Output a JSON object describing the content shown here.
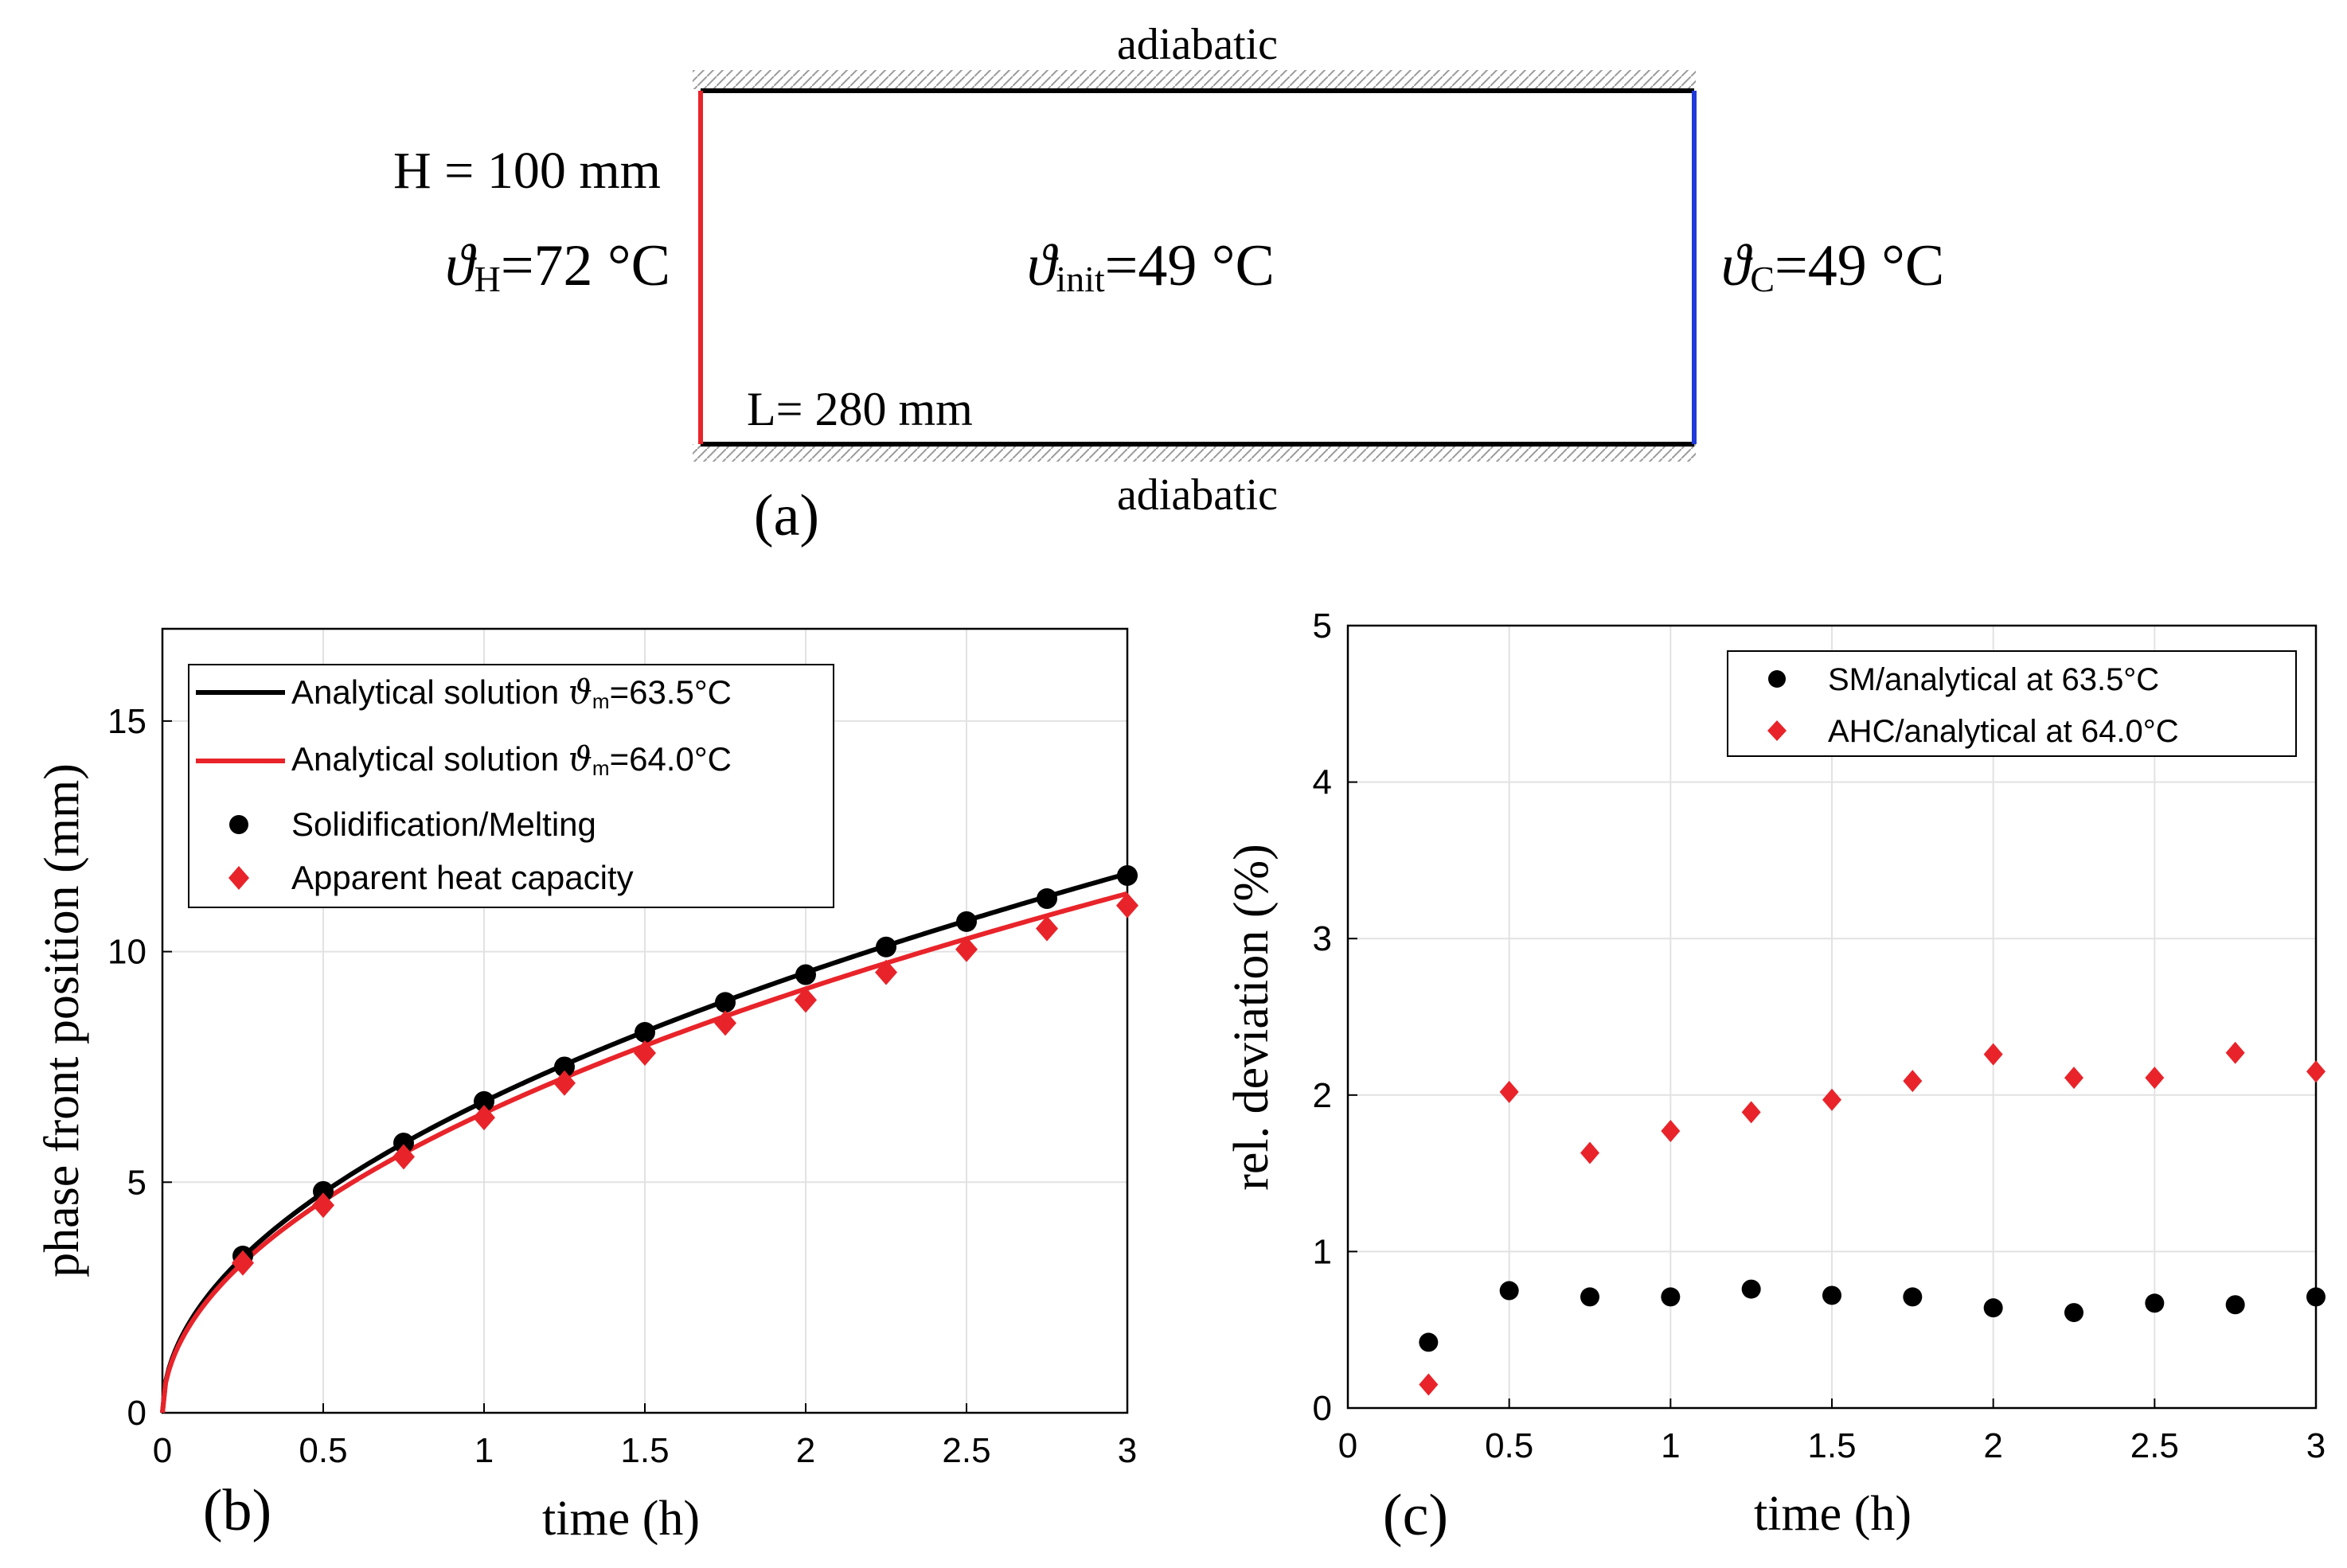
{
  "schematic": {
    "top_label": "adiabatic",
    "bottom_label": "adiabatic",
    "height_label": "H = 100 mm",
    "hot_symbol": "ϑ",
    "hot_sub": "H",
    "hot_value": "=72 °C",
    "init_symbol": "ϑ",
    "init_sub": "init",
    "init_value": "=49 °C",
    "cold_symbol": "ϑ",
    "cold_sub": "C",
    "cold_value": "=49 °C",
    "length_label": "L= 280 mm",
    "panel_label": "(a)",
    "colors": {
      "hot": "#e8242a",
      "cold": "#1f3ad8",
      "outline": "#000000"
    }
  },
  "chart_data": [
    {
      "type": "line",
      "panel_label": "(b)",
      "xlabel": "time (h)",
      "ylabel": "phase front position (mm)",
      "xlim": [
        0,
        3
      ],
      "ylim": [
        0,
        17
      ],
      "xticks": [
        0,
        0.5,
        1,
        1.5,
        2,
        2.5,
        3
      ],
      "xtick_labels": [
        "0",
        "0.5",
        "1",
        "1.5",
        "2",
        "2.5",
        "3"
      ],
      "yticks": [
        0,
        5,
        10,
        15
      ],
      "ytick_labels": [
        "0",
        "5",
        "10",
        "15"
      ],
      "grid": true,
      "legend_position": "top-left",
      "lines": [
        {
          "name": "Analytical solution",
          "legend_prefix": "Analytical solution ",
          "legend_symbol": "ϑ",
          "legend_sub": "m",
          "legend_suffix": "=63.5°C",
          "color": "#000000",
          "coef_mm_per_sqrt_h": 6.75
        },
        {
          "name": "Analytical solution",
          "legend_prefix": "Analytical solution ",
          "legend_symbol": "ϑ",
          "legend_sub": "m",
          "legend_suffix": "=64.0°C",
          "color": "#e8242a",
          "coef_mm_per_sqrt_h": 6.5
        }
      ],
      "series": [
        {
          "name": "Solidification/Melting",
          "marker": "circle",
          "color": "#000000",
          "x": [
            0.25,
            0.5,
            0.75,
            1,
            1.25,
            1.5,
            1.75,
            2,
            2.25,
            2.5,
            2.75,
            3
          ],
          "values": [
            3.4,
            4.8,
            5.85,
            6.75,
            7.5,
            8.25,
            8.9,
            9.5,
            10.1,
            10.65,
            11.15,
            11.65
          ]
        },
        {
          "name": "Apparent heat capacity",
          "marker": "diamond",
          "color": "#e8242a",
          "x": [
            0.25,
            0.5,
            0.75,
            1,
            1.25,
            1.5,
            1.75,
            2,
            2.25,
            2.5,
            2.75,
            3
          ],
          "values": [
            3.25,
            4.5,
            5.55,
            6.4,
            7.15,
            7.8,
            8.45,
            8.95,
            9.55,
            10.05,
            10.5,
            11.0
          ]
        }
      ]
    },
    {
      "type": "scatter",
      "panel_label": "(c)",
      "xlabel": "time (h)",
      "ylabel": "rel. deviation (%)",
      "xlim": [
        0,
        3
      ],
      "ylim": [
        0,
        5
      ],
      "xticks": [
        0,
        0.5,
        1,
        1.5,
        2,
        2.5,
        3
      ],
      "xtick_labels": [
        "0",
        "0.5",
        "1",
        "1.5",
        "2",
        "2.5",
        "3"
      ],
      "yticks": [
        0,
        1,
        2,
        3,
        4,
        5
      ],
      "ytick_labels": [
        "0",
        "1",
        "2",
        "3",
        "4",
        "5"
      ],
      "grid": true,
      "legend_position": "top-right",
      "series": [
        {
          "name": "SM/analytical",
          "legend_text": "SM/analytical  at 63.5°C",
          "marker": "circle",
          "color": "#000000",
          "x": [
            0.25,
            0.5,
            0.75,
            1,
            1.25,
            1.5,
            1.75,
            2,
            2.25,
            2.5,
            2.75,
            3
          ],
          "values": [
            0.42,
            0.75,
            0.71,
            0.71,
            0.76,
            0.72,
            0.71,
            0.64,
            0.61,
            0.67,
            0.66,
            0.71
          ]
        },
        {
          "name": "AHC/analytical",
          "legend_text": "AHC/analytical at 64.0°C",
          "marker": "diamond",
          "color": "#e8242a",
          "x": [
            0.25,
            0.5,
            0.75,
            1,
            1.25,
            1.5,
            1.75,
            2,
            2.25,
            2.5,
            2.75,
            3
          ],
          "values": [
            0.15,
            2.02,
            1.63,
            1.77,
            1.89,
            1.97,
            2.09,
            2.26,
            2.11,
            2.11,
            2.27,
            2.15
          ]
        }
      ]
    }
  ]
}
